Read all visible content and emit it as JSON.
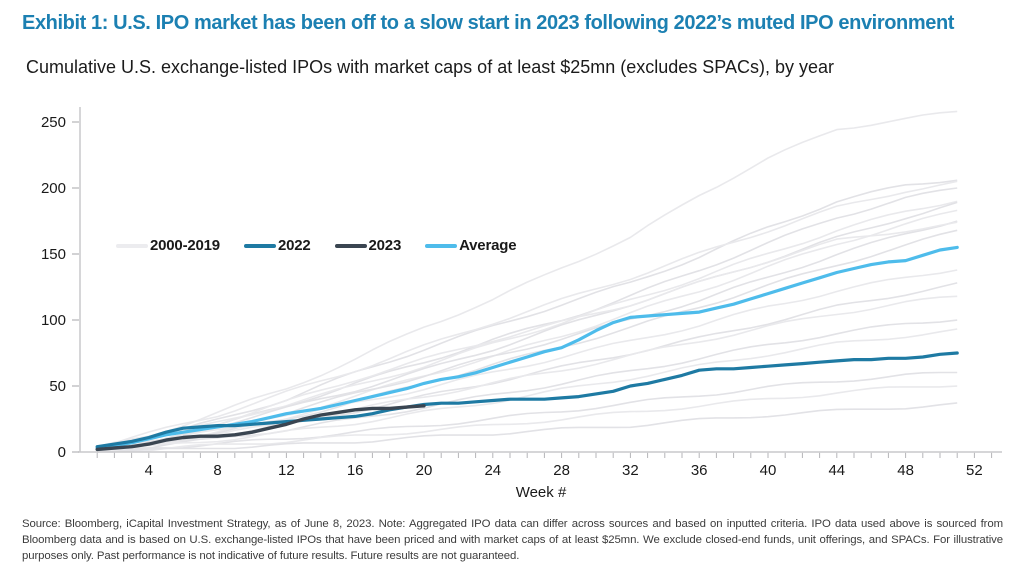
{
  "header": {
    "title": "Exhibit 1: U.S. IPO market has been off to a slow start in 2023 following 2022’s muted IPO environment",
    "subtitle": "Cumulative U.S. exchange-listed IPOs with market caps of at least $25mn (excludes SPACs), by year"
  },
  "legend": {
    "items": [
      {
        "label": "2000-2019",
        "color": "#ECECEF"
      },
      {
        "label": "2022",
        "color": "#1E7AA3"
      },
      {
        "label": "2023",
        "color": "#3A4551"
      },
      {
        "label": "Average",
        "color": "#4EBCEB"
      }
    ]
  },
  "footer": {
    "source": "Source: Bloomberg, iCapital Investment Strategy, as of June 8, 2023. Note: Aggregated IPO data can differ across sources and based on inputted criteria. IPO data used above is sourced from Bloomberg data and is based on U.S. exchange-listed IPOs that have been priced and with market caps of at least $25mn. We exclude closed-end funds, unit offerings, and SPACs. For illustrative purposes only. Past performance is not indicative of future results. Future results are not guaranteed."
  },
  "colors": {
    "title_blue": "#1C80B2",
    "axis_line": "#C9C9CC",
    "tick_mark": "#B5B5B8",
    "tick_text": "#1A1A1A",
    "gray_line": "#E9E9EC",
    "gray_line_alt": "#E2E2E6"
  },
  "chart_data": {
    "type": "line",
    "xlabel": "Week #",
    "ylabel": "",
    "x_ticks": [
      4,
      8,
      12,
      16,
      20,
      24,
      28,
      32,
      36,
      40,
      44,
      48,
      52
    ],
    "y_ticks": [
      0,
      50,
      100,
      150,
      200,
      250
    ],
    "xlim": [
      0,
      53
    ],
    "ylim": [
      0,
      260
    ],
    "grid": false,
    "legend_position": "top-left-inside",
    "weeks_start": 1,
    "series": [
      {
        "name": "Average",
        "color": "#4EBCEB",
        "width": 3.2,
        "values": [
          3,
          5,
          7,
          10,
          13,
          15,
          17,
          19,
          21,
          23,
          26,
          29,
          31,
          33,
          36,
          39,
          42,
          45,
          48,
          52,
          55,
          57,
          60,
          64,
          68,
          72,
          76,
          79,
          85,
          92,
          98,
          102,
          103,
          104,
          105,
          106,
          109,
          112,
          116,
          120,
          124,
          128,
          132,
          136,
          139,
          142,
          144,
          145,
          149,
          153,
          155
        ]
      },
      {
        "name": "2022",
        "color": "#1E7AA3",
        "width": 3.2,
        "values": [
          4,
          6,
          8,
          11,
          15,
          18,
          19,
          20,
          20,
          21,
          22,
          23,
          24,
          25,
          26,
          27,
          29,
          32,
          34,
          36,
          37,
          37,
          38,
          39,
          40,
          40,
          40,
          41,
          42,
          44,
          46,
          50,
          52,
          55,
          58,
          62,
          63,
          63,
          64,
          65,
          66,
          67,
          68,
          69,
          70,
          70,
          71,
          71,
          72,
          74,
          75
        ]
      },
      {
        "name": "2023",
        "color": "#3A4551",
        "width": 3.4,
        "values": [
          2,
          3,
          4,
          6,
          9,
          11,
          12,
          12,
          13,
          15,
          18,
          21,
          25,
          28,
          30,
          32,
          33,
          33,
          34,
          35
        ]
      }
    ],
    "background_series": {
      "name": "2000-2019",
      "control_weeks": [
        1,
        4,
        8,
        12,
        16,
        20,
        24,
        28,
        32,
        36,
        40,
        44,
        48,
        51
      ],
      "lines": [
        [
          3,
          12,
          30,
          48,
          70,
          95,
          115,
          140,
          162,
          195,
          222,
          245,
          252,
          258
        ],
        [
          2,
          10,
          24,
          40,
          60,
          78,
          95,
          112,
          128,
          148,
          170,
          190,
          202,
          207
        ],
        [
          4,
          14,
          28,
          45,
          62,
          80,
          98,
          115,
          132,
          150,
          168,
          185,
          198,
          204
        ],
        [
          2,
          8,
          20,
          35,
          52,
          68,
          85,
          100,
          118,
          138,
          158,
          178,
          192,
          200
        ],
        [
          3,
          10,
          22,
          36,
          50,
          65,
          82,
          98,
          115,
          132,
          150,
          168,
          182,
          191
        ],
        [
          2,
          9,
          20,
          33,
          47,
          62,
          78,
          95,
          112,
          128,
          145,
          162,
          178,
          188
        ],
        [
          1,
          6,
          15,
          28,
          42,
          58,
          72,
          88,
          105,
          122,
          140,
          158,
          172,
          183
        ],
        [
          2,
          8,
          18,
          30,
          44,
          58,
          72,
          86,
          100,
          115,
          132,
          150,
          165,
          176
        ],
        [
          2,
          9,
          22,
          38,
          55,
          70,
          85,
          98,
          112,
          128,
          145,
          160,
          168,
          173
        ],
        [
          1,
          5,
          14,
          25,
          38,
          52,
          66,
          80,
          94,
          110,
          126,
          142,
          156,
          168
        ],
        [
          2,
          7,
          16,
          26,
          37,
          48,
          60,
          72,
          84,
          96,
          110,
          122,
          132,
          139
        ],
        [
          1,
          5,
          12,
          21,
          31,
          42,
          53,
          64,
          75,
          86,
          98,
          110,
          120,
          127
        ],
        [
          2,
          6,
          13,
          22,
          32,
          42,
          52,
          62,
          73,
          84,
          95,
          105,
          113,
          118
        ],
        [
          1,
          4,
          10,
          17,
          25,
          34,
          43,
          52,
          61,
          71,
          81,
          90,
          97,
          101
        ],
        [
          1,
          4,
          9,
          15,
          22,
          30,
          38,
          47,
          56,
          65,
          74,
          82,
          88,
          92
        ],
        [
          1,
          3,
          6,
          10,
          15,
          20,
          25,
          31,
          37,
          43,
          49,
          54,
          58,
          60
        ],
        [
          0,
          2,
          5,
          8,
          12,
          16,
          20,
          25,
          30,
          35,
          40,
          45,
          49,
          51
        ],
        [
          0,
          1,
          3,
          5,
          8,
          11,
          14,
          17,
          20,
          24,
          28,
          31,
          34,
          36
        ]
      ]
    }
  }
}
